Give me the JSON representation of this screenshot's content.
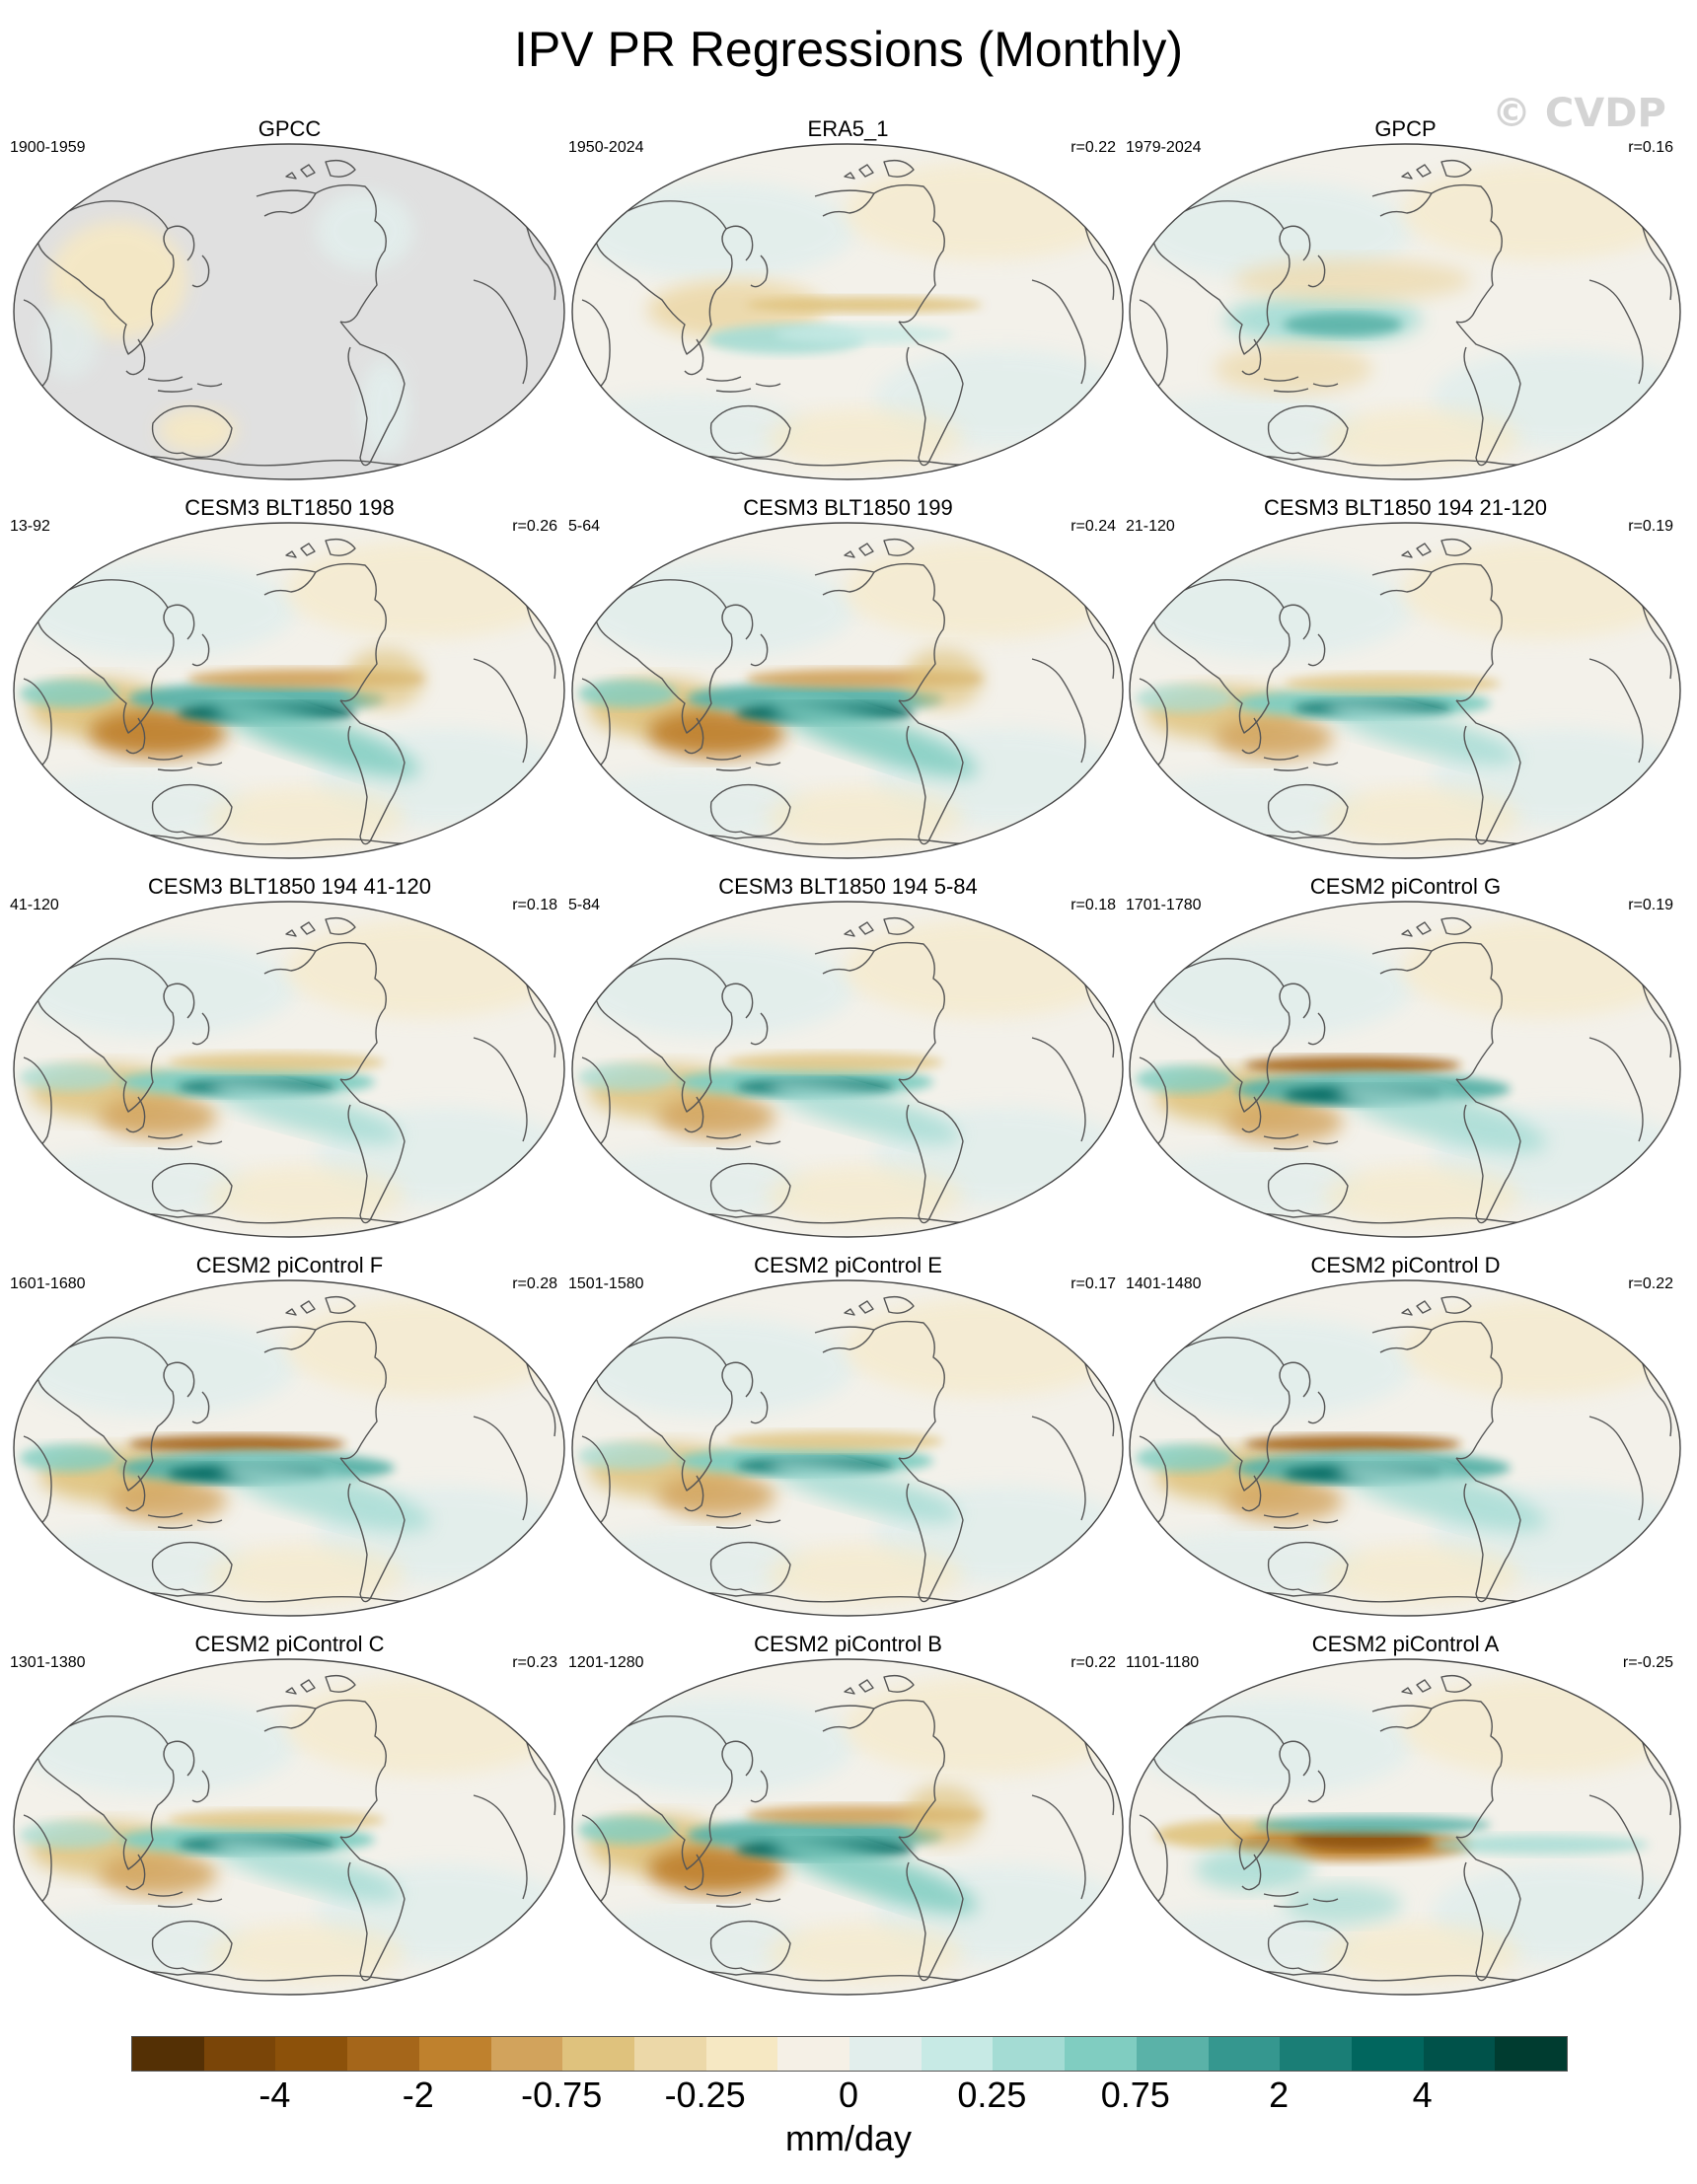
{
  "title": "IPV PR Regressions (Monthly)",
  "watermark": "© CVDP",
  "panels": [
    {
      "title": "GPCC",
      "years": "1900-1959",
      "corr": "",
      "pattern": "gpcc"
    },
    {
      "title": "ERA5_1",
      "years": "1950-2024",
      "corr": "r=0.22",
      "pattern": "era5"
    },
    {
      "title": "GPCP",
      "years": "1979-2024",
      "corr": "r=0.16",
      "pattern": "gpcp"
    },
    {
      "title": "CESM3 BLT1850 198",
      "years": "13-92",
      "corr": "r=0.26",
      "pattern": "strong"
    },
    {
      "title": "CESM3 BLT1850 199",
      "years": "5-64",
      "corr": "r=0.24",
      "pattern": "strong"
    },
    {
      "title": "CESM3 BLT1850 194 21-120",
      "years": "21-120",
      "corr": "r=0.19",
      "pattern": "medium"
    },
    {
      "title": "CESM3 BLT1850 194 41-120",
      "years": "41-120",
      "corr": "r=0.18",
      "pattern": "medium"
    },
    {
      "title": "CESM3 BLT1850 194 5-84",
      "years": "5-84",
      "corr": "r=0.18",
      "pattern": "medium"
    },
    {
      "title": "CESM2 piControl G",
      "years": "1701-1780",
      "corr": "r=0.19",
      "pattern": "dipole"
    },
    {
      "title": "CESM2 piControl F",
      "years": "1601-1680",
      "corr": "r=0.28",
      "pattern": "dipole"
    },
    {
      "title": "CESM2 piControl E",
      "years": "1501-1580",
      "corr": "r=0.17",
      "pattern": "medium"
    },
    {
      "title": "CESM2 piControl D",
      "years": "1401-1480",
      "corr": "r=0.22",
      "pattern": "dipole"
    },
    {
      "title": "CESM2 piControl C",
      "years": "1301-1380",
      "corr": "r=0.23",
      "pattern": "medium"
    },
    {
      "title": "CESM2 piControl B",
      "years": "1201-1280",
      "corr": "r=0.22",
      "pattern": "strong"
    },
    {
      "title": "CESM2 piControl A",
      "years": "1101-1180",
      "corr": "r=-0.25",
      "pattern": "inverse"
    }
  ],
  "colorbar": {
    "colors": [
      "#543005",
      "#7a4508",
      "#8c510a",
      "#a5661a",
      "#bf812d",
      "#d2a35c",
      "#dfc27d",
      "#ecd8a8",
      "#f6e8c3",
      "#f5f0e6",
      "#e2eeec",
      "#c7eae5",
      "#a4dcd4",
      "#80cdc1",
      "#5ab2a8",
      "#35978f",
      "#1a7e76",
      "#01665e",
      "#00524a",
      "#003c30"
    ],
    "ticks": [
      {
        "label": "-4",
        "index": 1
      },
      {
        "label": "-2",
        "index": 3
      },
      {
        "label": "-0.75",
        "index": 5
      },
      {
        "label": "-0.25",
        "index": 7
      },
      {
        "label": "0",
        "index": 9
      },
      {
        "label": "0.25",
        "index": 11
      },
      {
        "label": "0.75",
        "index": 13
      },
      {
        "label": "2",
        "index": 15
      },
      {
        "label": "4",
        "index": 17
      }
    ],
    "units": "mm/day"
  }
}
